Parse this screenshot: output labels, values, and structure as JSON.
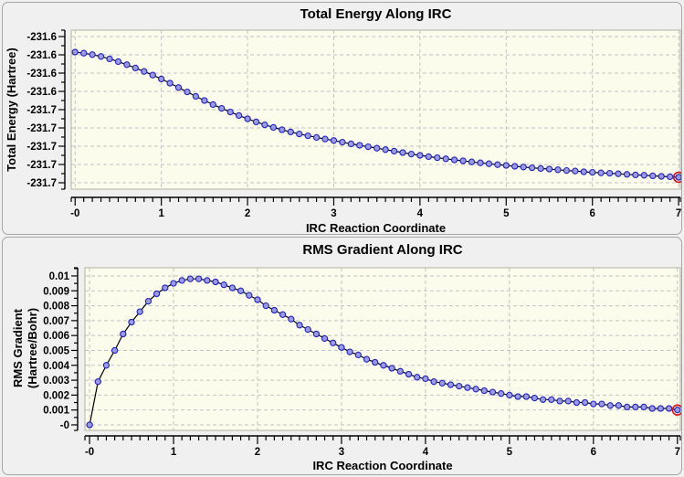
{
  "window": {
    "background": "#f0f0f0"
  },
  "colors": {
    "panel_background": "#f0f0f0",
    "panel_border": "#a6a6a6",
    "plot_background": "#fcfcec",
    "plot_frame": "#b2b2a4",
    "gridline": "#c2c2c2",
    "axis_ruler": "#000000",
    "series_line": "#000000",
    "marker_fill": "#9a9ae6",
    "marker_stroke": "#2222bb",
    "highlight_ring": "#dd1111",
    "text": "#000000"
  },
  "chart_data": [
    {
      "type": "line",
      "title": "Total Energy Along IRC",
      "xlabel": "IRC Reaction Coordinate",
      "ylabel_lines": [
        "Total Energy (Hartree)"
      ],
      "legend": false,
      "grid": true,
      "grid_style": "dashed",
      "xlim": [
        -0.045,
        7.02
      ],
      "ylim": [
        -231.6935,
        -231.6065
      ],
      "x_tick_values": [
        0,
        1,
        2,
        3,
        4,
        5,
        6,
        7
      ],
      "x_tick_labels": [
        "-0",
        "1",
        "2",
        "3",
        "4",
        "5",
        "6",
        "7"
      ],
      "x_minor_tick_step": 0.1,
      "y_tick_values": [
        -231.61,
        -231.62,
        -231.63,
        -231.64,
        -231.65,
        -231.66,
        -231.67,
        -231.68,
        -231.69
      ],
      "y_tick_labels": [
        "-231.6",
        "-231.6",
        "-231.6",
        "-231.6",
        "-231.7",
        "-231.7",
        "-231.7",
        "-231.7",
        "-231.7"
      ],
      "y_minor_tick_step": 0.005,
      "highlight_last_point": true,
      "x": [
        0,
        0.1,
        0.2,
        0.3,
        0.4,
        0.5,
        0.6,
        0.7,
        0.8,
        0.9,
        1,
        1.1,
        1.2,
        1.3,
        1.4,
        1.5,
        1.6,
        1.7,
        1.8,
        1.9,
        2,
        2.1,
        2.2,
        2.3,
        2.4,
        2.5,
        2.6,
        2.7,
        2.8,
        2.9,
        3,
        3.1,
        3.2,
        3.3,
        3.4,
        3.5,
        3.6,
        3.7,
        3.8,
        3.9,
        4,
        4.1,
        4.2,
        4.3,
        4.4,
        4.5,
        4.6,
        4.7,
        4.8,
        4.9,
        5,
        5.1,
        5.2,
        5.3,
        5.4,
        5.5,
        5.6,
        5.7,
        5.8,
        5.9,
        6,
        6.1,
        6.2,
        6.3,
        6.4,
        6.5,
        6.6,
        6.7,
        6.8,
        6.9,
        7
      ],
      "y": [
        -231.6185,
        -231.6191,
        -231.6199,
        -231.6209,
        -231.6222,
        -231.6237,
        -231.6254,
        -231.6272,
        -231.6291,
        -231.6311,
        -231.6332,
        -231.6355,
        -231.6379,
        -231.6403,
        -231.6427,
        -231.645,
        -231.6472,
        -231.6493,
        -231.6513,
        -231.6532,
        -231.655,
        -231.6567,
        -231.6583,
        -231.6597,
        -231.661,
        -231.6622,
        -231.6633,
        -231.6643,
        -231.6652,
        -231.6661,
        -231.6669,
        -231.6678,
        -231.6687,
        -231.6695,
        -231.6703,
        -231.6711,
        -231.6719,
        -231.6727,
        -231.6735,
        -231.6743,
        -231.675,
        -231.6757,
        -231.6763,
        -231.6769,
        -231.6775,
        -231.678,
        -231.6786,
        -231.6791,
        -231.6796,
        -231.6801,
        -231.6805,
        -231.681,
        -231.6814,
        -231.6818,
        -231.6822,
        -231.6825,
        -231.6829,
        -231.6833,
        -231.6836,
        -231.684,
        -231.6843,
        -231.6846,
        -231.6848,
        -231.6851,
        -231.6854,
        -231.6857,
        -231.6859,
        -231.6862,
        -231.6865,
        -231.6867,
        -231.687
      ]
    },
    {
      "type": "line",
      "title": "RMS Gradient Along IRC",
      "xlabel": "IRC Reaction Coordinate",
      "ylabel_lines": [
        "RMS Gradient",
        "(Hartree/Bohr)"
      ],
      "legend": false,
      "grid": true,
      "grid_style": "dashed",
      "xlim": [
        -0.055,
        7.035
      ],
      "ylim": [
        -0.00037,
        0.01055
      ],
      "x_tick_values": [
        0,
        1,
        2,
        3,
        4,
        5,
        6,
        7
      ],
      "x_tick_labels": [
        "-0",
        "1",
        "2",
        "3",
        "4",
        "5",
        "6",
        "7"
      ],
      "x_minor_tick_step": 0.1,
      "y_tick_values": [
        0.01,
        0.009,
        0.008,
        0.007,
        0.006,
        0.005,
        0.004,
        0.003,
        0.002,
        0.001,
        0
      ],
      "y_tick_labels": [
        "0.01",
        "0.009",
        "0.008",
        "0.007",
        "0.006",
        "0.005",
        "0.004",
        "0.003",
        "0.002",
        "0.001",
        "-0"
      ],
      "y_minor_tick_step": 0.0005,
      "highlight_last_point": true,
      "x": [
        0,
        0.1,
        0.2,
        0.3,
        0.4,
        0.5,
        0.6,
        0.7,
        0.8,
        0.9,
        1,
        1.1,
        1.2,
        1.3,
        1.4,
        1.5,
        1.6,
        1.7,
        1.8,
        1.9,
        2,
        2.1,
        2.2,
        2.3,
        2.4,
        2.5,
        2.6,
        2.7,
        2.8,
        2.9,
        3,
        3.1,
        3.2,
        3.3,
        3.4,
        3.5,
        3.6,
        3.7,
        3.8,
        3.9,
        4,
        4.1,
        4.2,
        4.3,
        4.4,
        4.5,
        4.6,
        4.7,
        4.8,
        4.9,
        5,
        5.1,
        5.2,
        5.3,
        5.4,
        5.5,
        5.6,
        5.7,
        5.8,
        5.9,
        6,
        6.1,
        6.2,
        6.3,
        6.4,
        6.5,
        6.6,
        6.7,
        6.8,
        6.9,
        7
      ],
      "y": [
        0.0,
        0.0029,
        0.004,
        0.005,
        0.0061,
        0.0069,
        0.0076,
        0.0083,
        0.0088,
        0.0092,
        0.0095,
        0.0097,
        0.0098,
        0.0098,
        0.0097,
        0.0096,
        0.0094,
        0.0092,
        0.009,
        0.0087,
        0.0084,
        0.008,
        0.0077,
        0.0074,
        0.0071,
        0.0067,
        0.0064,
        0.0061,
        0.0058,
        0.0055,
        0.0052,
        0.0049,
        0.0047,
        0.0044,
        0.0042,
        0.004,
        0.0038,
        0.0036,
        0.0034,
        0.0032,
        0.0031,
        0.0029,
        0.0028,
        0.0027,
        0.0026,
        0.0025,
        0.0024,
        0.0023,
        0.0022,
        0.0021,
        0.002,
        0.0019,
        0.0019,
        0.0018,
        0.0017,
        0.0017,
        0.0016,
        0.0016,
        0.0015,
        0.0015,
        0.0014,
        0.0014,
        0.0013,
        0.0013,
        0.0012,
        0.0012,
        0.0012,
        0.0011,
        0.0011,
        0.0011,
        0.001
      ]
    }
  ]
}
